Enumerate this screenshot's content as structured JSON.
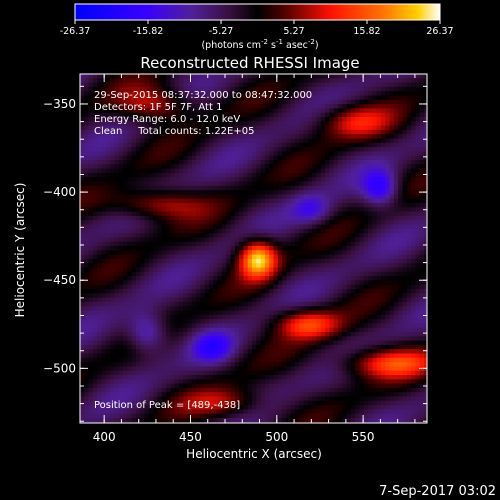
{
  "chart_data": {
    "type": "heatmap",
    "title": "Reconstructed RHESSI Image",
    "xlabel": "Heliocentric X (arcsec)",
    "ylabel": "Heliocentric Y (arcsec)",
    "xlim": [
      386,
      587
    ],
    "ylim": [
      -531,
      -333
    ],
    "x_ticks": [
      400,
      450,
      500,
      550
    ],
    "y_ticks": [
      -350,
      -400,
      -450,
      -500
    ],
    "colorbar": {
      "min": -26.37,
      "max": 26.37,
      "tick_labels": [
        "-26.37",
        "-15.82",
        "-5.27",
        "5.27",
        "15.82",
        "26.37"
      ],
      "unit_label": "(photons cm",
      "unit_sup1": "-2",
      "unit_mid": " s",
      "unit_sup2": "-1",
      "unit_mid2": " asec",
      "unit_sup3": "-2",
      "unit_end": ")"
    },
    "annotations": [
      "29-Sep-2015 08:37:32.000 to 08:47:32.000",
      "Detectors: 1F 5F 7F, Att 1",
      "Energy Range: 6.0 - 12.0 keV",
      "Clean     Total counts: 1.22E+05"
    ],
    "peak_label": "Position of Peak = [489,-438]",
    "peak": {
      "x": 489,
      "y": -438,
      "value": 26.37
    },
    "grid": false,
    "colors": {
      "background": "#000000",
      "text": "#ffffff"
    }
  },
  "footer": {
    "date": "7-Sep-2017 03:02"
  }
}
